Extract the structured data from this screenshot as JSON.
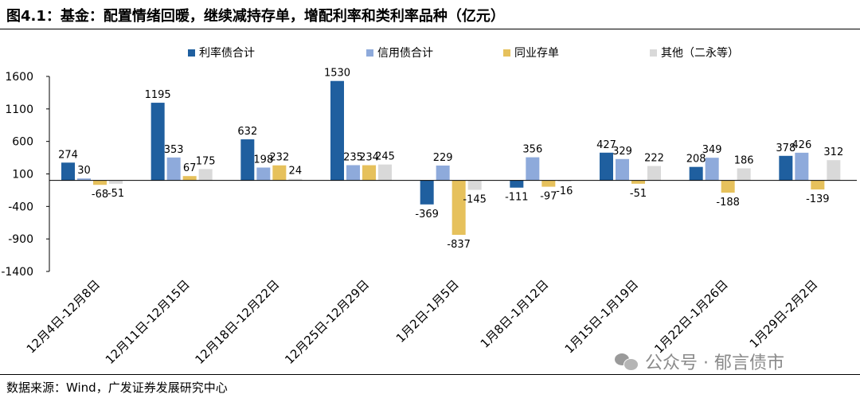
{
  "title": "图4.1：基金：配置情绪回暖，继续减持存单，增配利率和类利率品种（亿元）",
  "source": "数据来源：Wind，广发证券发展研究中心",
  "watermark": "公众号 · 郁言债市",
  "chart_data": {
    "type": "bar",
    "categories": [
      "12月4日-12月8日",
      "12月11日-12月15日",
      "12月18日-12月22日",
      "12月25日-12月29日",
      "1月2日-1月5日",
      "1月8日-1月12日",
      "1月15日-1月19日",
      "1月22日-1月26日",
      "1月29日-2月2日"
    ],
    "series": [
      {
        "name": "利率债合计",
        "color": "#1f5f9f",
        "values": [
          274,
          1195,
          632,
          1530,
          -369,
          -111,
          427,
          208,
          378
        ]
      },
      {
        "name": "信用债合计",
        "color": "#8eaadb",
        "values": [
          30,
          353,
          198,
          235,
          229,
          356,
          329,
          349,
          426
        ]
      },
      {
        "name": "同业存单",
        "color": "#e6c15c",
        "values": [
          -68,
          67,
          232,
          234,
          -837,
          -97,
          -51,
          -188,
          -139
        ]
      },
      {
        "name": "其他（二永等）",
        "color": "#d9d9d9",
        "values": [
          -51,
          175,
          24,
          245,
          -145,
          -16,
          222,
          186,
          312
        ]
      }
    ],
    "yticks": [
      1600,
      1100,
      600,
      100,
      -400,
      -900,
      -1400
    ],
    "ylim": [
      -1400,
      1600
    ],
    "grid": false,
    "legend_position": "top"
  }
}
